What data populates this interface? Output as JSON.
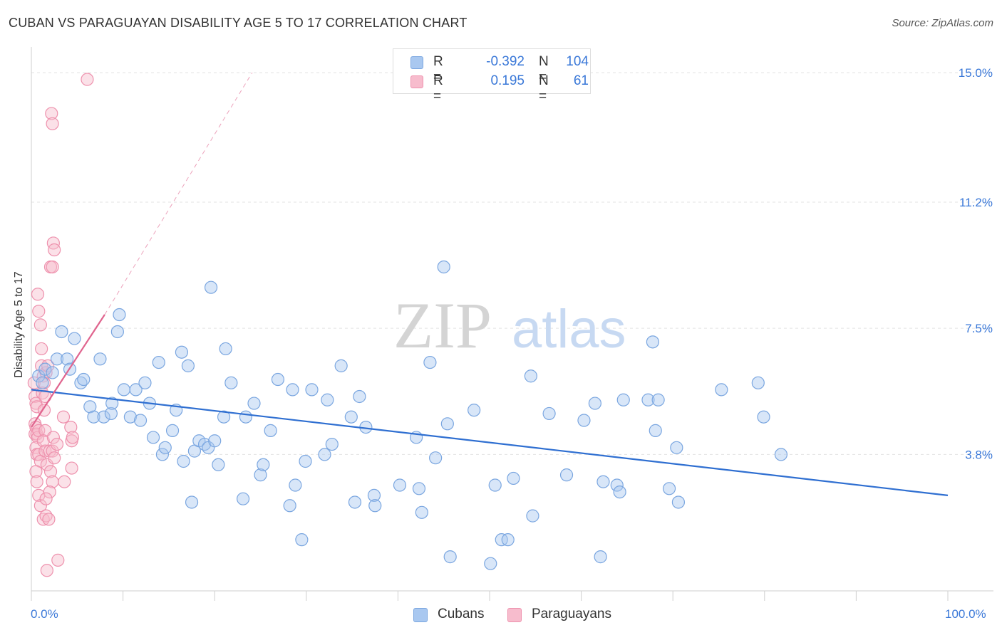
{
  "title": "CUBAN VS PARAGUAYAN DISABILITY AGE 5 TO 17 CORRELATION CHART",
  "source": "Source: ZipAtlas.com",
  "watermark": {
    "zip": "ZIP",
    "atlas": "atlas"
  },
  "legend": {
    "r_label": "R =",
    "n_label": "N =",
    "rows": [
      {
        "name": "Cubans",
        "r": "-0.392",
        "n": "104",
        "color": "#a9c8f0",
        "stroke": "#7aa6e0"
      },
      {
        "name": "Paraguayans",
        "r": "0.195",
        "n": "61",
        "color": "#f7bccd",
        "stroke": "#ee91ad"
      }
    ]
  },
  "chart_data": {
    "type": "scatter",
    "title": "CUBAN VS PARAGUAYAN DISABILITY AGE 5 TO 17 CORRELATION CHART",
    "xlabel": "",
    "ylabel": "Disability Age 5 to 17",
    "xlim": [
      0,
      100
    ],
    "ylim": [
      -0.2,
      15.5
    ],
    "x_tick_labels": [
      "0.0%",
      "100.0%"
    ],
    "y_ticks": [
      3.8,
      7.5,
      11.2,
      15.0
    ],
    "y_tick_labels": [
      "3.8%",
      "7.5%",
      "11.2%",
      "15.0%"
    ],
    "grid": true,
    "series": [
      {
        "name": "Cubans",
        "color": "#a9c8f0",
        "stroke": "#7aa6e0",
        "trend_color": "#2f6fd1",
        "trend": {
          "x": [
            0,
            100
          ],
          "y": [
            5.7,
            2.6
          ]
        },
        "points": [
          [
            0.8,
            6.1
          ],
          [
            1.2,
            5.9
          ],
          [
            1.5,
            6.3
          ],
          [
            2.3,
            6.2
          ],
          [
            2.8,
            6.6
          ],
          [
            3.3,
            7.4
          ],
          [
            3.9,
            6.6
          ],
          [
            4.2,
            6.3
          ],
          [
            4.7,
            7.2
          ],
          [
            5.4,
            5.9
          ],
          [
            5.7,
            6.0
          ],
          [
            6.4,
            5.2
          ],
          [
            6.8,
            4.9
          ],
          [
            7.5,
            6.6
          ],
          [
            7.9,
            4.9
          ],
          [
            8.7,
            5.0
          ],
          [
            8.8,
            5.3
          ],
          [
            9.4,
            7.4
          ],
          [
            9.6,
            7.9
          ],
          [
            10.1,
            5.7
          ],
          [
            10.8,
            4.9
          ],
          [
            11.4,
            5.7
          ],
          [
            11.9,
            4.8
          ],
          [
            12.4,
            5.9
          ],
          [
            12.9,
            5.3
          ],
          [
            13.3,
            4.3
          ],
          [
            13.9,
            6.5
          ],
          [
            14.3,
            3.8
          ],
          [
            14.6,
            4.0
          ],
          [
            15.4,
            4.5
          ],
          [
            15.8,
            5.1
          ],
          [
            16.4,
            6.8
          ],
          [
            16.6,
            3.6
          ],
          [
            17.1,
            6.4
          ],
          [
            17.5,
            2.4
          ],
          [
            17.8,
            3.9
          ],
          [
            18.3,
            4.2
          ],
          [
            18.9,
            4.1
          ],
          [
            19.3,
            4.0
          ],
          [
            19.6,
            8.7
          ],
          [
            20.0,
            4.2
          ],
          [
            20.4,
            3.5
          ],
          [
            21.0,
            4.9
          ],
          [
            21.2,
            6.9
          ],
          [
            21.8,
            5.9
          ],
          [
            23.1,
            2.5
          ],
          [
            23.4,
            4.9
          ],
          [
            24.3,
            5.3
          ],
          [
            25.0,
            3.2
          ],
          [
            25.3,
            3.5
          ],
          [
            26.1,
            4.5
          ],
          [
            26.9,
            6.0
          ],
          [
            28.2,
            2.3
          ],
          [
            28.5,
            5.7
          ],
          [
            28.8,
            2.9
          ],
          [
            29.5,
            1.3
          ],
          [
            29.9,
            3.6
          ],
          [
            30.6,
            5.7
          ],
          [
            32.0,
            3.8
          ],
          [
            32.3,
            5.4
          ],
          [
            32.8,
            4.1
          ],
          [
            33.8,
            6.4
          ],
          [
            34.9,
            4.9
          ],
          [
            35.3,
            2.4
          ],
          [
            35.8,
            5.5
          ],
          [
            36.5,
            4.6
          ],
          [
            37.4,
            2.6
          ],
          [
            37.5,
            2.3
          ],
          [
            40.2,
            2.9
          ],
          [
            42.0,
            4.3
          ],
          [
            42.3,
            2.8
          ],
          [
            42.6,
            2.1
          ],
          [
            43.5,
            6.5
          ],
          [
            44.1,
            3.7
          ],
          [
            45.0,
            9.3
          ],
          [
            45.4,
            4.7
          ],
          [
            45.7,
            0.8
          ],
          [
            48.3,
            5.1
          ],
          [
            50.1,
            0.6
          ],
          [
            50.6,
            2.9
          ],
          [
            51.3,
            1.3
          ],
          [
            52.0,
            1.3
          ],
          [
            52.6,
            3.1
          ],
          [
            54.5,
            6.1
          ],
          [
            54.7,
            2.0
          ],
          [
            56.5,
            5.0
          ],
          [
            58.4,
            3.2
          ],
          [
            60.3,
            4.8
          ],
          [
            61.5,
            5.3
          ],
          [
            62.1,
            0.8
          ],
          [
            62.4,
            3.0
          ],
          [
            63.9,
            2.9
          ],
          [
            64.2,
            2.7
          ],
          [
            64.6,
            5.4
          ],
          [
            67.3,
            5.4
          ],
          [
            67.8,
            7.1
          ],
          [
            68.1,
            4.5
          ],
          [
            68.4,
            5.4
          ],
          [
            69.6,
            2.8
          ],
          [
            70.4,
            4.0
          ],
          [
            70.6,
            2.4
          ],
          [
            75.3,
            5.7
          ],
          [
            79.3,
            5.9
          ],
          [
            79.9,
            4.9
          ],
          [
            81.8,
            3.8
          ]
        ]
      },
      {
        "name": "Paraguayans",
        "color": "#f7bccd",
        "stroke": "#ee91ad",
        "trend_color": "#e0648e",
        "trend": {
          "x": [
            0,
            8.0
          ],
          "y": [
            4.6,
            7.9
          ]
        },
        "trend_dashed": {
          "x": [
            8.0,
            24.1
          ],
          "y": [
            7.9,
            15.0
          ]
        },
        "points": [
          [
            0.3,
            5.9
          ],
          [
            0.4,
            5.5
          ],
          [
            0.5,
            5.3
          ],
          [
            0.6,
            5.2
          ],
          [
            0.4,
            4.7
          ],
          [
            0.5,
            4.6
          ],
          [
            0.4,
            4.4
          ],
          [
            0.6,
            4.4
          ],
          [
            0.7,
            4.3
          ],
          [
            0.8,
            4.5
          ],
          [
            0.5,
            4.0
          ],
          [
            0.6,
            3.8
          ],
          [
            0.8,
            3.8
          ],
          [
            1.0,
            3.6
          ],
          [
            0.5,
            3.3
          ],
          [
            0.6,
            3.0
          ],
          [
            0.8,
            2.6
          ],
          [
            1.0,
            2.3
          ],
          [
            1.3,
            1.9
          ],
          [
            1.6,
            2.0
          ],
          [
            1.9,
            1.9
          ],
          [
            1.7,
            0.4
          ],
          [
            2.9,
            0.7
          ],
          [
            0.7,
            8.5
          ],
          [
            0.8,
            8.0
          ],
          [
            1.0,
            7.6
          ],
          [
            1.1,
            6.9
          ],
          [
            1.1,
            6.4
          ],
          [
            1.3,
            6.1
          ],
          [
            1.6,
            6.2
          ],
          [
            1.8,
            6.4
          ],
          [
            1.4,
            5.9
          ],
          [
            1.2,
            5.6
          ],
          [
            1.5,
            5.5
          ],
          [
            1.4,
            5.1
          ],
          [
            1.5,
            4.5
          ],
          [
            1.3,
            4.2
          ],
          [
            1.5,
            3.9
          ],
          [
            1.7,
            3.5
          ],
          [
            2.1,
            3.3
          ],
          [
            2.0,
            3.9
          ],
          [
            2.3,
            3.9
          ],
          [
            2.4,
            4.3
          ],
          [
            2.5,
            3.7
          ],
          [
            2.3,
            3.0
          ],
          [
            2.0,
            2.7
          ],
          [
            1.6,
            2.5
          ],
          [
            2.1,
            9.3
          ],
          [
            2.3,
            9.3
          ],
          [
            2.4,
            10.0
          ],
          [
            2.5,
            9.8
          ],
          [
            2.2,
            13.8
          ],
          [
            2.3,
            13.5
          ],
          [
            6.1,
            14.8
          ],
          [
            3.5,
            4.9
          ],
          [
            4.3,
            4.6
          ],
          [
            4.4,
            4.2
          ],
          [
            4.5,
            4.3
          ],
          [
            4.4,
            3.4
          ],
          [
            2.8,
            4.1
          ],
          [
            3.6,
            3.0
          ]
        ]
      }
    ]
  }
}
